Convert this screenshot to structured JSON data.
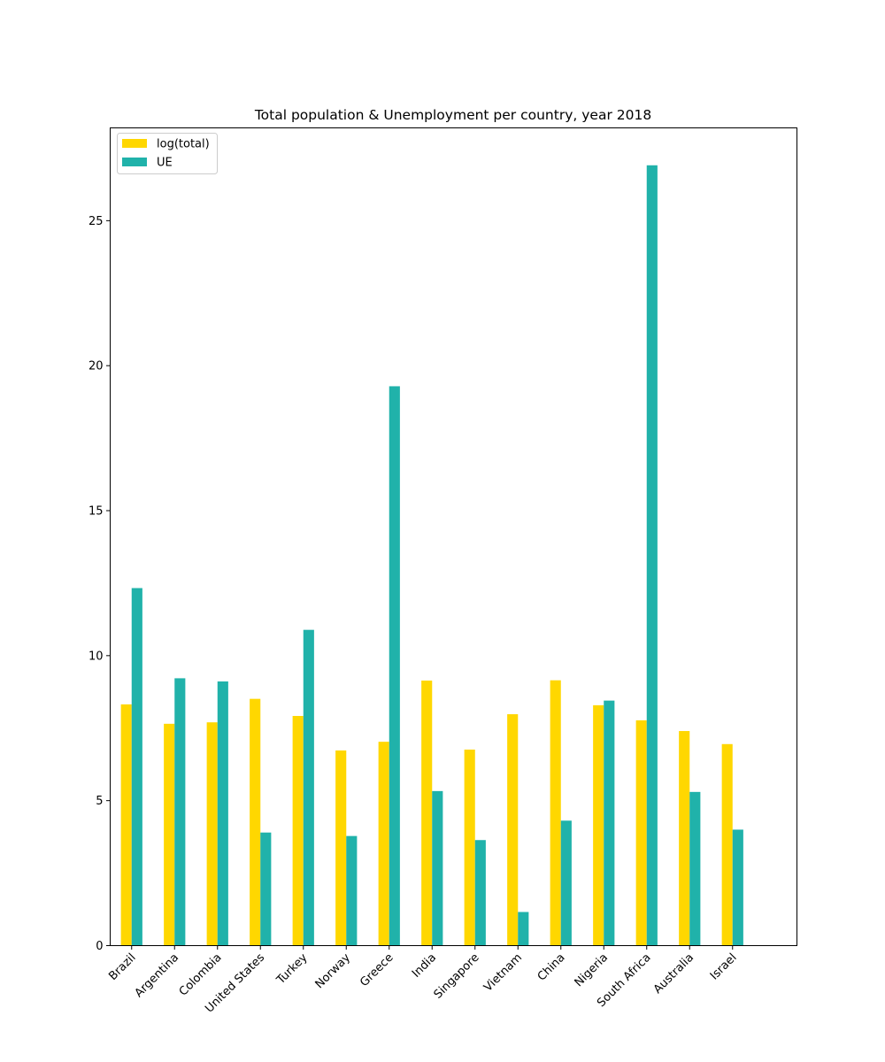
{
  "chart_data": {
    "type": "bar",
    "title": "Total population & Unemployment per country, year 2018",
    "xlabel": "",
    "ylabel": "",
    "ylim": [
      0,
      28.2
    ],
    "yticks": [
      0,
      5,
      10,
      15,
      20,
      25
    ],
    "grid": false,
    "legend_position": "top-left",
    "categories": [
      "Brazil",
      "Argentina",
      "Colombia",
      "United States",
      "Turkey",
      "Norway",
      "Greece",
      "India",
      "Singapore",
      "Vietnam",
      "China",
      "Nigeria",
      "South Africa",
      "Australia",
      "Israel"
    ],
    "series": [
      {
        "name": "log(total)",
        "color": "#FFD700",
        "values": [
          8.32,
          7.65,
          7.7,
          8.51,
          7.92,
          6.73,
          7.03,
          9.14,
          6.76,
          7.98,
          9.15,
          8.29,
          7.77,
          7.4,
          6.95
        ]
      },
      {
        "name": "UE",
        "color": "#20B2AA",
        "values": [
          12.33,
          9.22,
          9.11,
          3.9,
          10.89,
          3.78,
          19.29,
          5.33,
          3.64,
          1.16,
          4.31,
          8.45,
          26.91,
          5.3,
          4.0
        ]
      }
    ]
  }
}
